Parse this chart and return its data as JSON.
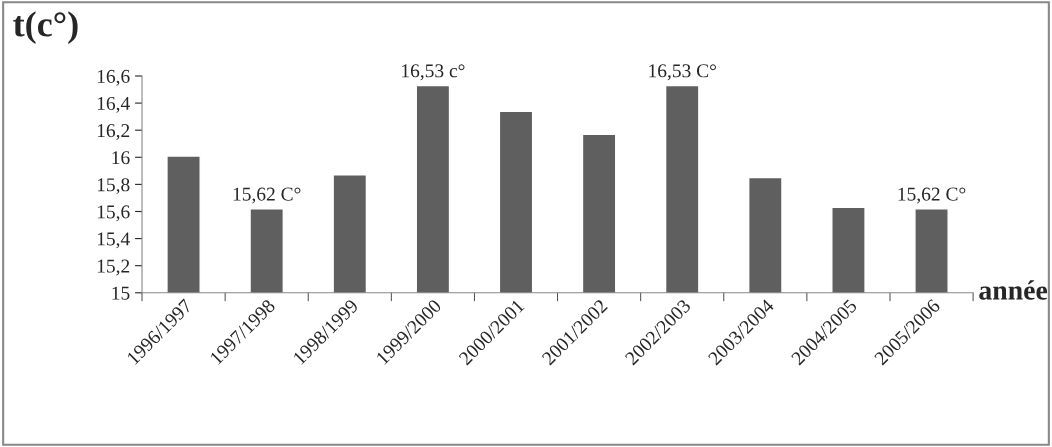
{
  "chart_data": {
    "type": "bar",
    "ylabel": "t(c°)",
    "xlabel": "année",
    "categories": [
      "1996/1997",
      "1997/1998",
      "1998/1999",
      "1999/2000",
      "2000/2001",
      "2001/2002",
      "2002/2003",
      "2003/2004",
      "2004/2005",
      "2005/2006"
    ],
    "series": [
      {
        "color": "#5f5f5f",
        "values": [
          16.01,
          15.62,
          15.87,
          16.53,
          16.34,
          16.17,
          16.53,
          15.85,
          15.63,
          15.62
        ],
        "value_labels": [
          null,
          "15,62 C°",
          null,
          "16,53 c°",
          null,
          null,
          "16,53 C°",
          null,
          null,
          "15,62 C°"
        ]
      }
    ],
    "ylim": [
      15,
      16.6
    ],
    "yticks": [
      15,
      {
        "value": 15.2,
        "label": "15,2"
      },
      {
        "value": 15.4,
        "label": "15,4"
      },
      {
        "value": 15.6,
        "label": "15,6"
      },
      {
        "value": 15.8,
        "label": "15,8"
      },
      16,
      {
        "value": 16.2,
        "label": "16,2"
      },
      {
        "value": 16.4,
        "label": "16,4"
      },
      {
        "value": 16.6,
        "label": "16,6"
      }
    ],
    "grid": false,
    "legend": false
  }
}
